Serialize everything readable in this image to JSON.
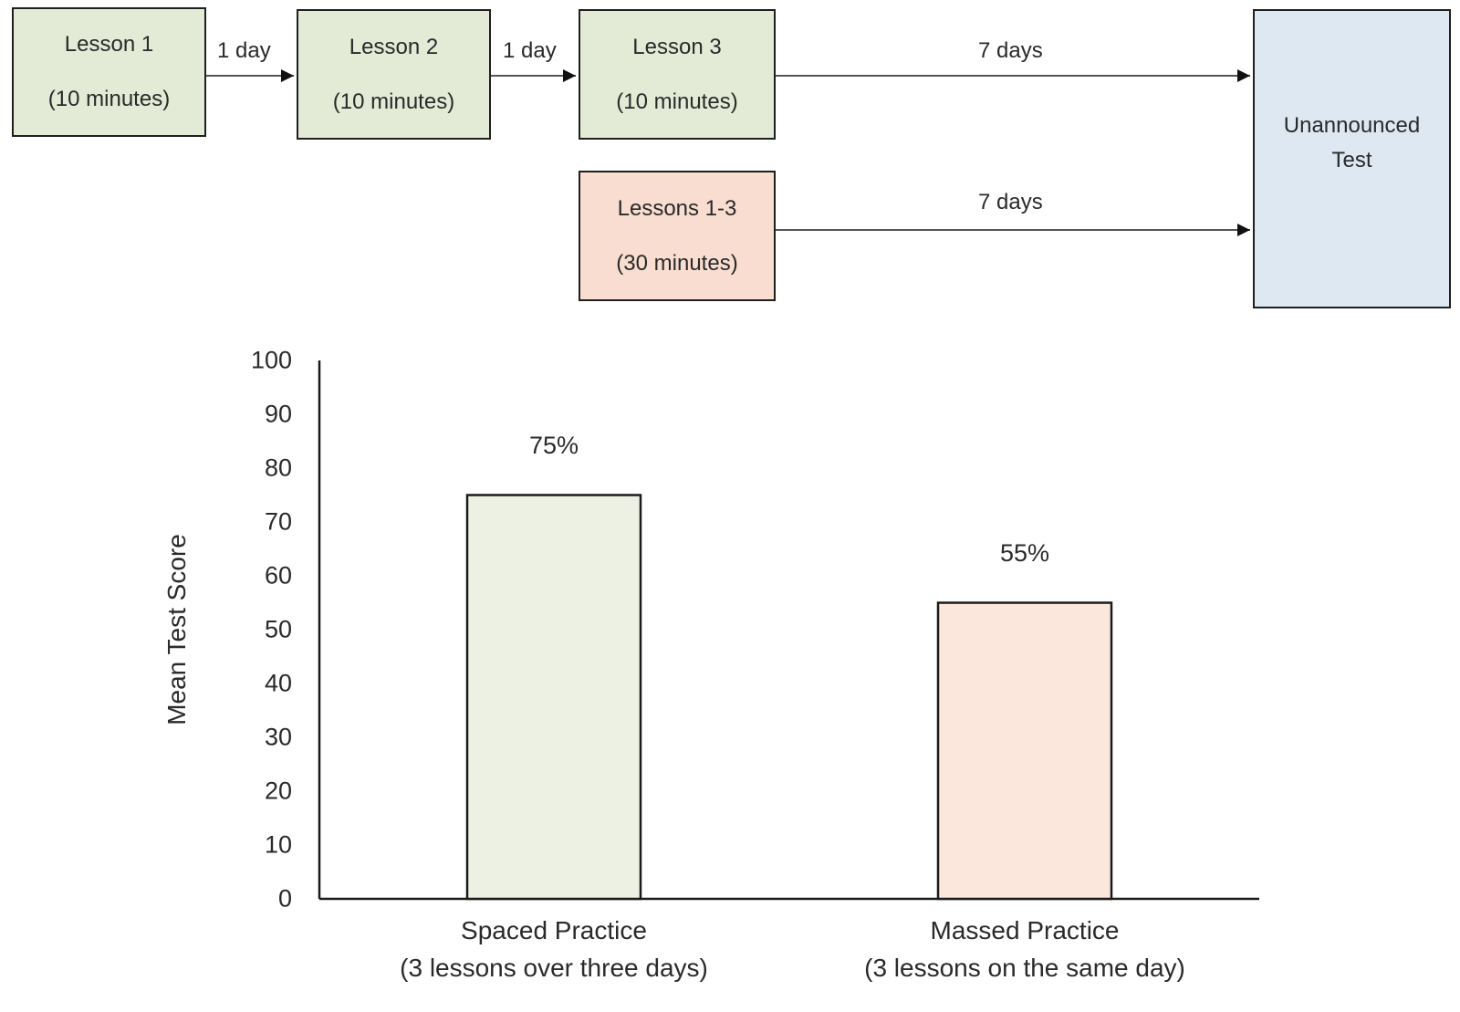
{
  "timeline": {
    "lesson1": {
      "line1": "Lesson 1",
      "line2": "(10 minutes)"
    },
    "lesson2": {
      "line1": "Lesson 2",
      "line2": "(10 minutes)"
    },
    "lesson3": {
      "line1": "Lesson 3",
      "line2": "(10 minutes)"
    },
    "lessons_massed": {
      "line1": "Lessons 1-3",
      "line2": "(30 minutes)"
    },
    "test": {
      "line1": "Unannounced",
      "line2": "Test"
    },
    "gap1": "1 day",
    "gap2": "1 day",
    "gap3": "7 days",
    "gap4": "7 days",
    "colors": {
      "spaced": "#e3ebd6",
      "massed": "#f8ddd0",
      "test": "#dde8f3",
      "border": "#1f1f1f"
    }
  },
  "chart_data": {
    "type": "bar",
    "categories": [
      "Spaced Practice\n(3 lessons over three days)",
      "Massed Practice\n(3 lessons on the same day)"
    ],
    "category_lines": [
      [
        "Spaced Practice",
        "(3 lessons over three days)"
      ],
      [
        "Massed Practice",
        "(3 lessons on the same day)"
      ]
    ],
    "values": [
      75,
      55
    ],
    "value_labels": [
      "75%",
      "55%"
    ],
    "bar_colors": [
      "#edf1e4",
      "#fce7dc"
    ],
    "xlabel": "",
    "ylabel": "Mean Test Score",
    "ylim": [
      0,
      100
    ],
    "yticks": [
      0,
      10,
      20,
      30,
      40,
      50,
      60,
      70,
      80,
      90,
      100
    ],
    "grid": false,
    "legend": "none"
  }
}
